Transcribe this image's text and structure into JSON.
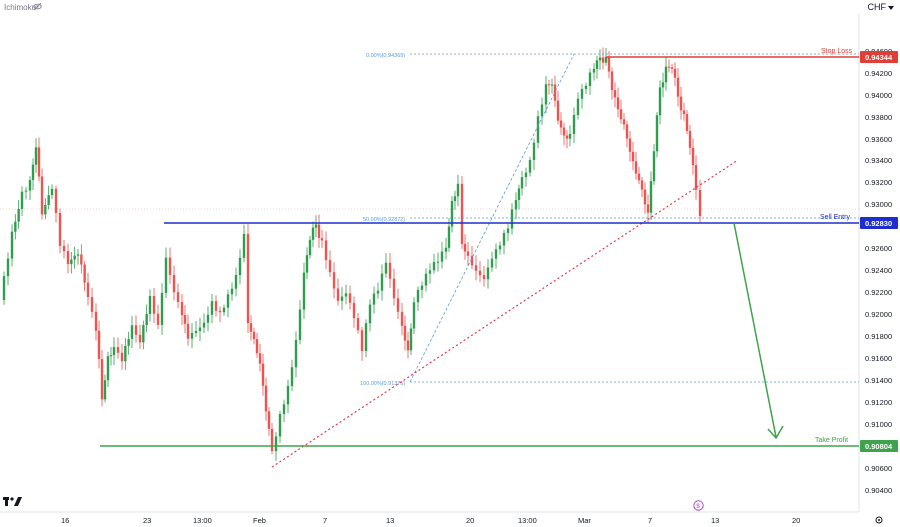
{
  "header": {
    "indicator": "Ichimoku",
    "currency": "CHF"
  },
  "price_axis": {
    "ticks": [
      "0.94600",
      "0.94200",
      "0.94000",
      "0.93800",
      "0.93600",
      "0.93400",
      "0.93200",
      "0.93000",
      "0.92600",
      "0.92400",
      "0.92200",
      "0.92000",
      "0.91800",
      "0.91600",
      "0.91400",
      "0.91200",
      "0.91000",
      "0.90600",
      "0.90400"
    ]
  },
  "time_axis": {
    "labels": [
      "16",
      "23",
      "13:00",
      "Feb",
      "7",
      "13",
      "20",
      "13:00",
      "Mar",
      "7",
      "13",
      "20"
    ]
  },
  "levels": {
    "stop_loss": {
      "label": "Stop Loss",
      "price": "0.94344",
      "color": "#e03e36"
    },
    "sell_entry": {
      "label": "Sell Entry",
      "price": "0.92830",
      "color": "#1e2ecc"
    },
    "take_profit": {
      "label": "Take Profit",
      "price": "0.90804",
      "color": "#3fa34d"
    }
  },
  "fibonacci": [
    {
      "label": "0.00%(0.94369)"
    },
    {
      "label": "50.00%(0.92872)"
    },
    {
      "label": "100.00%(0.91375)"
    }
  ],
  "colors": {
    "bull": "#26a69a",
    "bull_green": "#2e9e4e",
    "bear": "#ef5350",
    "fib": "#5b9bd5",
    "trendline": "#e53950",
    "arrow": "#3fa34d"
  }
}
